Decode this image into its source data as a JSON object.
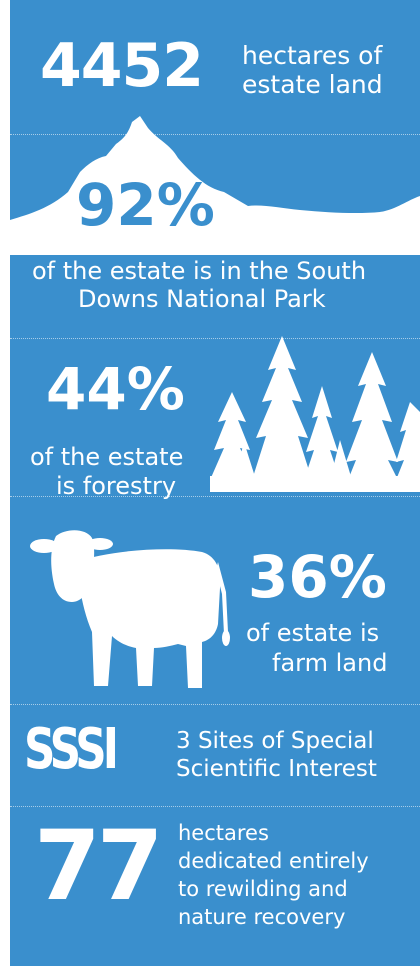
{
  "colors": {
    "panel": "#3a8fcd",
    "ink": "#ffffff"
  },
  "stats": {
    "land": {
      "value": "4452",
      "line1": "hectares of",
      "line2": "estate land"
    },
    "national_park": {
      "value": "92%",
      "line1": "of the estate is in the South",
      "line2": "Downs National Park"
    },
    "forestry": {
      "value": "44%",
      "line1": "of the estate",
      "line2": "is forestry"
    },
    "farm": {
      "value": "36%",
      "line1": "of estate is",
      "line2": "farm land"
    },
    "sssi": {
      "value": "SSSI",
      "line1": "3 Sites of Special",
      "line2": "Scientific Interest"
    },
    "rewilding": {
      "value": "77",
      "line1": "hectares",
      "line2": "dedicated entirely",
      "line3": "to rewilding and",
      "line4": "nature recovery"
    }
  },
  "icons": [
    "mountain-icon",
    "forest-icon",
    "cow-icon"
  ]
}
